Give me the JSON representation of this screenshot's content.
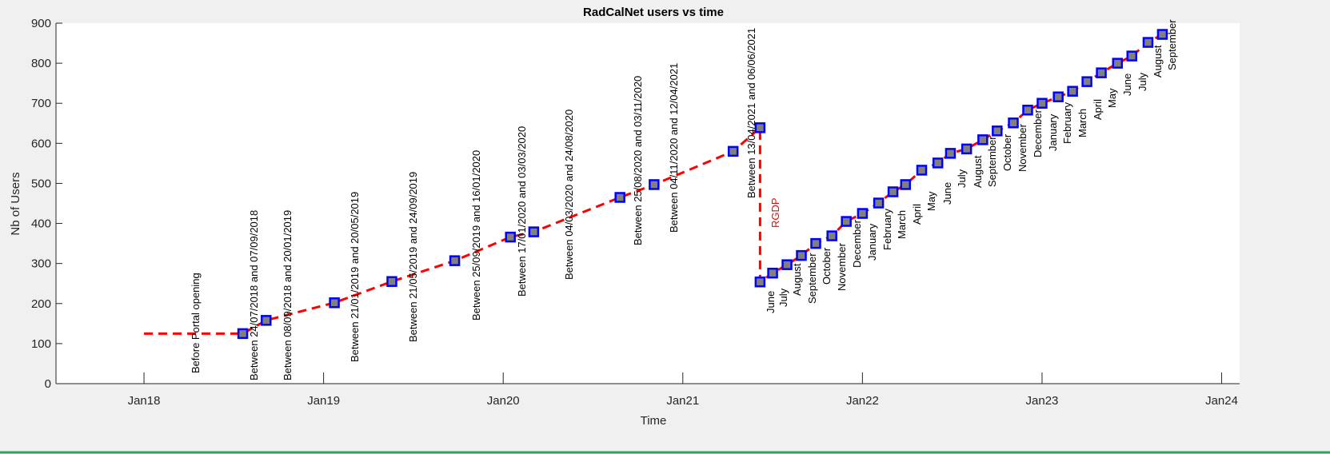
{
  "chart_data": {
    "type": "line",
    "title": "RadCalNet users vs time",
    "xlabel": "Time",
    "ylabel": "Nb of Users",
    "xlim": [
      2017.51,
      2024.1
    ],
    "ylim": [
      0,
      900
    ],
    "xticks": [
      {
        "value": 2018,
        "label": "Jan18"
      },
      {
        "value": 2019,
        "label": "Jan19"
      },
      {
        "value": 2020,
        "label": "Jan20"
      },
      {
        "value": 2021,
        "label": "Jan21"
      },
      {
        "value": 2022,
        "label": "Jan22"
      },
      {
        "value": 2023,
        "label": "Jan23"
      },
      {
        "value": 2024,
        "label": "Jan24"
      }
    ],
    "yticks": [
      0,
      100,
      200,
      300,
      400,
      500,
      600,
      700,
      800,
      900
    ],
    "series": [
      {
        "name": "RadCalNet users",
        "color": "#ff0000",
        "marker_fill": "#808080",
        "marker_edge": "#0000ff",
        "x": [
          2018.0,
          2018.55,
          2018.68,
          2019.06,
          2019.38,
          2019.73,
          2020.04,
          2020.17,
          2020.65,
          2020.84,
          2021.28,
          2021.43,
          2021.43,
          2021.5,
          2021.58,
          2021.66,
          2021.74,
          2021.83,
          2021.91,
          2022.0,
          2022.09,
          2022.17,
          2022.24,
          2022.33,
          2022.42,
          2022.49,
          2022.58,
          2022.67,
          2022.75,
          2022.84,
          2022.92,
          2023.0,
          2023.09,
          2023.17,
          2023.25,
          2023.33,
          2023.42,
          2023.5,
          2023.59,
          2023.67
        ],
        "values": [
          125,
          125,
          158,
          202,
          255,
          307,
          366,
          379,
          465,
          497,
          580,
          639,
          254,
          276,
          297,
          320,
          350,
          369,
          405,
          425,
          451,
          479,
          497,
          533,
          551,
          575,
          586,
          609,
          631,
          651,
          683,
          700,
          716,
          730,
          754,
          776,
          800,
          818,
          852,
          872
        ]
      }
    ],
    "annotation_color": "#000000",
    "annotations": [
      "Before Portal opening",
      "Between 24/07/2018 and 07/09/2018",
      "Between 08/09/2018 and 20/01/2019",
      "Between 21/01/2019 and 20/05/2019",
      "Between 21/05/2019 and 24/09/2019",
      "Between 25/09/2019 and 16/01/2020",
      "Between 17/01/2020 and 03/03/2020",
      "Between 04/03/2020 and 24/08/2020",
      "Between 25/08/2020 and 03/11/2020",
      "Between 04/11/2020 and 12/04/2021",
      "Between 13/04/2021 and 06/06/2021",
      "June",
      "July",
      "August",
      "September",
      "October",
      "November",
      "December",
      "January",
      "February",
      "March",
      "April",
      "May",
      "June",
      "July",
      "August",
      "September",
      "October",
      "November",
      "December",
      "January",
      "February",
      "March",
      "April",
      "May",
      "June",
      "July",
      "August",
      "September"
    ],
    "event_label": {
      "text": "RGDP",
      "color": "#ff0000"
    }
  }
}
